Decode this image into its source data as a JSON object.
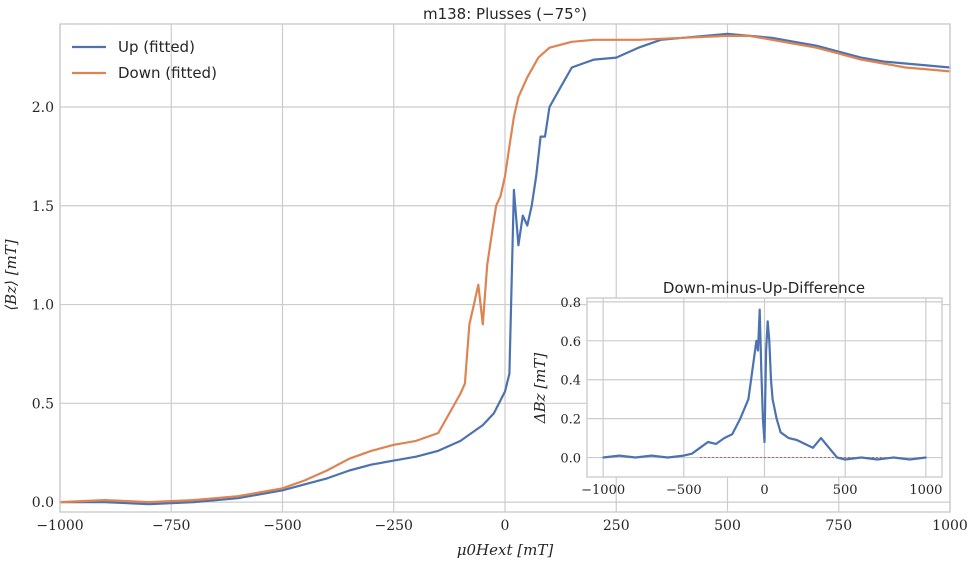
{
  "chart_data": [
    {
      "type": "line",
      "title": "m138: Plusses (−75°)",
      "xlabel": "μ0Hext [mT]",
      "ylabel": "⟨Bz⟩ [mT]",
      "xlim": [
        -1000,
        1000
      ],
      "ylim": [
        -0.05,
        2.42
      ],
      "xticks": [
        "−1000",
        "−750",
        "−500",
        "−250",
        "0",
        "250",
        "500",
        "750",
        "1000"
      ],
      "yticks": [
        "0.0",
        "0.5",
        "1.0",
        "1.5",
        "2.0"
      ],
      "grid": true,
      "legend": "top-left",
      "series": [
        {
          "name": "Up (fitted)",
          "color": "#4c72b0",
          "x": [
            -1000,
            -900,
            -800,
            -700,
            -600,
            -500,
            -450,
            -400,
            -350,
            -300,
            -250,
            -200,
            -150,
            -100,
            -75,
            -50,
            -25,
            0,
            10,
            20,
            30,
            40,
            50,
            60,
            70,
            80,
            90,
            100,
            125,
            150,
            175,
            200,
            250,
            300,
            350,
            400,
            450,
            500,
            550,
            600,
            650,
            700,
            750,
            800,
            850,
            900,
            950,
            1000
          ],
          "y": [
            0.0,
            0.0,
            -0.01,
            0.0,
            0.02,
            0.06,
            0.09,
            0.12,
            0.16,
            0.19,
            0.21,
            0.23,
            0.26,
            0.31,
            0.35,
            0.39,
            0.45,
            0.56,
            0.65,
            1.58,
            1.3,
            1.45,
            1.4,
            1.5,
            1.65,
            1.85,
            1.85,
            2.0,
            2.1,
            2.2,
            2.22,
            2.24,
            2.25,
            2.3,
            2.34,
            2.35,
            2.36,
            2.37,
            2.36,
            2.35,
            2.33,
            2.31,
            2.28,
            2.25,
            2.23,
            2.22,
            2.21,
            2.2
          ]
        },
        {
          "name": "Down (fitted)",
          "color": "#dd8452",
          "x": [
            -1000,
            -900,
            -800,
            -700,
            -600,
            -500,
            -450,
            -400,
            -350,
            -300,
            -250,
            -200,
            -150,
            -100,
            -90,
            -80,
            -70,
            -60,
            -50,
            -40,
            -30,
            -20,
            -10,
            0,
            10,
            20,
            30,
            50,
            75,
            100,
            150,
            200,
            250,
            300,
            400,
            500,
            550,
            600,
            650,
            700,
            750,
            800,
            850,
            900,
            950,
            1000
          ],
          "y": [
            0.0,
            0.01,
            0.0,
            0.01,
            0.03,
            0.07,
            0.11,
            0.16,
            0.22,
            0.26,
            0.29,
            0.31,
            0.35,
            0.55,
            0.6,
            0.9,
            1.0,
            1.1,
            0.9,
            1.2,
            1.35,
            1.5,
            1.55,
            1.65,
            1.8,
            1.95,
            2.05,
            2.15,
            2.25,
            2.3,
            2.33,
            2.34,
            2.34,
            2.34,
            2.35,
            2.36,
            2.36,
            2.34,
            2.32,
            2.3,
            2.27,
            2.24,
            2.22,
            2.2,
            2.19,
            2.18
          ]
        }
      ]
    },
    {
      "type": "line",
      "title": "Down-minus-Up-Difference",
      "xlabel": "",
      "ylabel": "ΔBz [mT]",
      "xlim": [
        -1100,
        1100
      ],
      "ylim": [
        -0.1,
        0.82
      ],
      "xticks": [
        "−1000",
        "−500",
        "0",
        "500",
        "1000"
      ],
      "yticks": [
        "0.0",
        "0.2",
        "0.4",
        "0.6",
        "0.8"
      ],
      "grid": true,
      "series": [
        {
          "color": "#4c72b0",
          "x": [
            -1000,
            -900,
            -800,
            -700,
            -600,
            -500,
            -450,
            -400,
            -350,
            -300,
            -250,
            -200,
            -150,
            -100,
            -75,
            -50,
            -40,
            -30,
            -20,
            -10,
            0,
            10,
            20,
            30,
            40,
            50,
            75,
            100,
            150,
            200,
            250,
            300,
            350,
            400,
            450,
            500,
            600,
            700,
            800,
            900,
            1000
          ],
          "y": [
            0.0,
            0.01,
            0.0,
            0.01,
            0.0,
            0.01,
            0.02,
            0.05,
            0.08,
            0.07,
            0.1,
            0.12,
            0.2,
            0.3,
            0.45,
            0.6,
            0.55,
            0.76,
            0.45,
            0.2,
            0.08,
            0.55,
            0.7,
            0.6,
            0.4,
            0.3,
            0.2,
            0.13,
            0.1,
            0.09,
            0.07,
            0.05,
            0.1,
            0.05,
            0.0,
            -0.01,
            0.0,
            -0.01,
            0.0,
            -0.01,
            0.0
          ]
        }
      ]
    }
  ]
}
